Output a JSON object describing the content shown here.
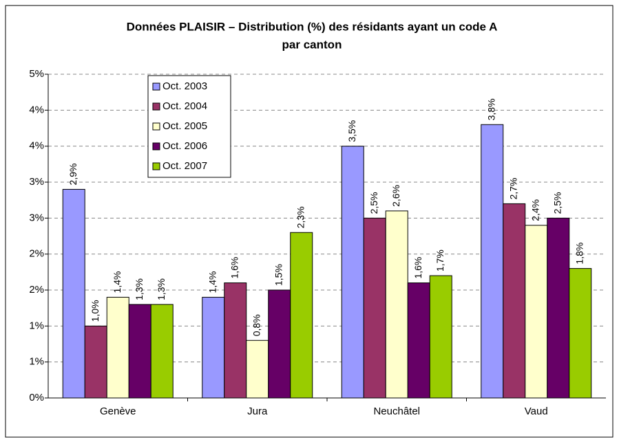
{
  "chart_data": {
    "type": "bar",
    "title_lines": [
      "Données PLAISIR – Distribution (%) des résidants ayant un code A",
      "par canton"
    ],
    "categories": [
      "Genève",
      "Jura",
      "Neuchâtel",
      "Vaud"
    ],
    "series": [
      {
        "name": "Oct. 2003",
        "color": "#9999ff",
        "values": [
          2.9,
          1.4,
          3.5,
          3.8
        ],
        "value_labels": [
          "2,9%",
          "1,4%",
          "3,5%",
          "3,8%"
        ]
      },
      {
        "name": "Oct. 2004",
        "color": "#993366",
        "values": [
          1.0,
          1.6,
          2.5,
          2.7
        ],
        "value_labels": [
          "1,0%",
          "1,6%",
          "2,5%",
          "2,7%"
        ]
      },
      {
        "name": "Oct. 2005",
        "color": "#ffffcc",
        "values": [
          1.4,
          0.8,
          2.6,
          2.4
        ],
        "value_labels": [
          "1,4%",
          "0,8%",
          "2,6%",
          "2,4%"
        ]
      },
      {
        "name": "Oct. 2006",
        "color": "#660066",
        "values": [
          1.3,
          1.5,
          1.6,
          2.5
        ],
        "value_labels": [
          "1,3%",
          "1,5%",
          "1,6%",
          "2,5%"
        ]
      },
      {
        "name": "Oct. 2007",
        "color": "#99cc00",
        "values": [
          1.3,
          2.3,
          1.7,
          1.8
        ],
        "value_labels": [
          "1,3%",
          "2,3%",
          "1,7%",
          "1,8%"
        ]
      }
    ],
    "ylim": [
      0,
      4.5
    ],
    "yticks": [
      {
        "value": 0,
        "label": "0%"
      },
      {
        "value": 0.5,
        "label": "1%"
      },
      {
        "value": 1,
        "label": "1%"
      },
      {
        "value": 1.5,
        "label": "2%"
      },
      {
        "value": 2,
        "label": "2%"
      },
      {
        "value": 2.5,
        "label": "3%"
      },
      {
        "value": 3,
        "label": "3%"
      },
      {
        "value": 3.5,
        "label": "4%"
      },
      {
        "value": 4,
        "label": "4%"
      },
      {
        "value": 4.5,
        "label": "5%"
      }
    ],
    "grid": true,
    "legend": "top-left"
  }
}
